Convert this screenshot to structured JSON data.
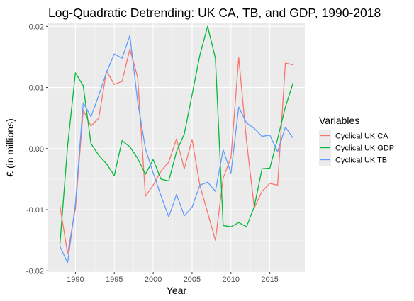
{
  "chart_data": {
    "type": "line",
    "title": "Log-Quadratic Detrending: UK CA, TB, and GDP, 1990-2018",
    "xlabel": "Year",
    "ylabel": "£ (in millions)",
    "xlim": [
      1986.5,
      2019.5
    ],
    "ylim": [
      -0.0202,
      0.0205
    ],
    "x_ticks": [
      1990,
      1995,
      2000,
      2005,
      2010,
      2015
    ],
    "y_ticks": [
      -0.02,
      -0.01,
      0.0,
      0.01,
      0.02
    ],
    "x_tick_labels": [
      "1990",
      "1995",
      "2000",
      "2005",
      "2010",
      "2015"
    ],
    "y_tick_labels": [
      "-0.02",
      "-0.01",
      "0.00",
      "0.01",
      "0.02"
    ],
    "legend": {
      "title": "Variables",
      "position": "right"
    },
    "background": "#ebebeb",
    "grid": true,
    "x": [
      1988,
      1989,
      1990,
      1991,
      1992,
      1993,
      1994,
      1995,
      1996,
      1997,
      1998,
      1999,
      2000,
      2001,
      2002,
      2003,
      2004,
      2005,
      2006,
      2007,
      2008,
      2009,
      2010,
      2011,
      2012,
      2013,
      2014,
      2015,
      2016,
      2017,
      2018
    ],
    "series": [
      {
        "name": "Cyclical UK CA",
        "color": "#f8766d",
        "values": [
          -0.0093,
          -0.0172,
          -0.0098,
          0.0063,
          0.0037,
          0.005,
          0.0127,
          0.0105,
          0.011,
          0.0163,
          0.0117,
          -0.0078,
          -0.006,
          -0.0037,
          -0.0022,
          0.0016,
          -0.0033,
          0.0015,
          -0.006,
          -0.0105,
          -0.015,
          -0.0048,
          -0.0015,
          0.0149,
          0.0013,
          -0.0097,
          -0.007,
          -0.0057,
          -0.006,
          0.014,
          0.0137
        ]
      },
      {
        "name": "Cyclical UK GDP",
        "color": "#00ba38",
        "values": [
          -0.0158,
          0.0005,
          0.0124,
          0.0103,
          0.0008,
          -0.0011,
          -0.0025,
          -0.0044,
          0.0013,
          0.0003,
          -0.0016,
          -0.0042,
          -0.0018,
          -0.005,
          -0.0053,
          -0.0005,
          0.0024,
          0.0088,
          0.0153,
          0.02,
          0.0148,
          -0.0126,
          -0.0128,
          -0.0121,
          -0.0128,
          -0.0095,
          -0.0033,
          -0.0032,
          0.0016,
          0.0068,
          0.0108
        ]
      },
      {
        "name": "Cyclical UK TB",
        "color": "#619cff",
        "values": [
          -0.016,
          -0.0187,
          -0.009,
          0.0075,
          0.0052,
          0.0087,
          0.0125,
          0.0155,
          0.0148,
          0.0185,
          0.0077,
          0.0,
          -0.004,
          -0.0077,
          -0.0112,
          -0.0075,
          -0.011,
          -0.0096,
          -0.006,
          -0.0055,
          -0.007,
          -0.0002,
          -0.004,
          0.0068,
          0.0042,
          0.0033,
          0.002,
          0.0022,
          -0.0005,
          0.0035,
          0.0017
        ]
      }
    ]
  }
}
